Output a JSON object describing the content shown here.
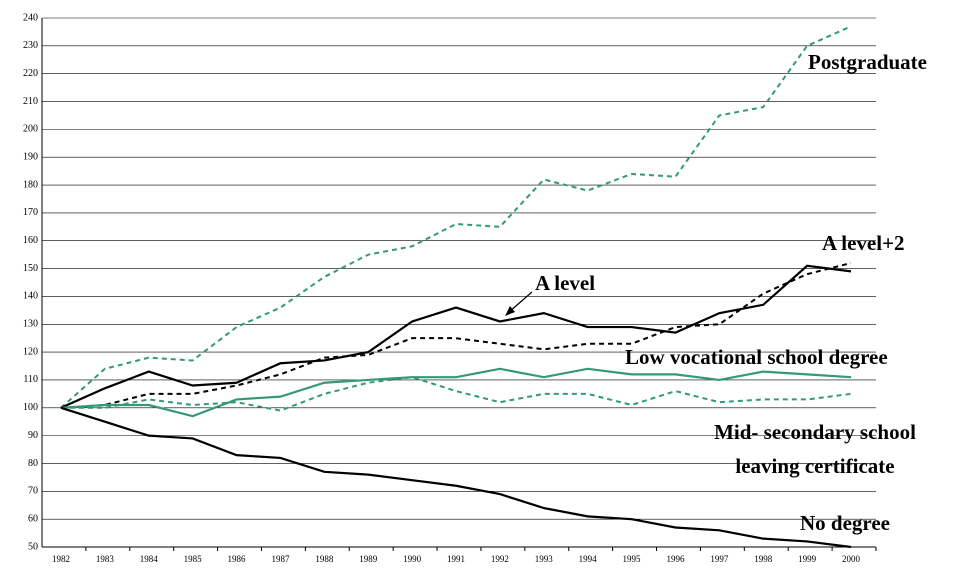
{
  "chart_data": {
    "type": "line",
    "x": [
      "1982",
      "1983",
      "1984",
      "1985",
      "1986",
      "1987",
      "1988",
      "1989",
      "1990",
      "1991",
      "1992",
      "1993",
      "1994",
      "1995",
      "1996",
      "1997",
      "1998",
      "1999",
      "2000"
    ],
    "ylim": [
      50,
      240
    ],
    "yticks": [
      50,
      60,
      70,
      80,
      90,
      100,
      110,
      120,
      130,
      140,
      150,
      160,
      170,
      180,
      190,
      200,
      210,
      220,
      230,
      240
    ],
    "grid": true,
    "series": [
      {
        "name": "Postgraduate",
        "color": "#339977",
        "dashed": true,
        "values": [
          100,
          114,
          118,
          117,
          129,
          136,
          147,
          155,
          158,
          166,
          165,
          182,
          178,
          184,
          183,
          205,
          208,
          230,
          237
        ]
      },
      {
        "name": "A level+2",
        "color": "#000000",
        "dashed": true,
        "values": [
          100,
          101,
          105,
          105,
          108,
          112,
          118,
          119,
          125,
          125,
          123,
          121,
          123,
          123,
          129,
          130,
          141,
          148,
          152
        ]
      },
      {
        "name": "A level",
        "color": "#000000",
        "dashed": false,
        "values": [
          100,
          107,
          113,
          108,
          109,
          116,
          117,
          120,
          131,
          136,
          131,
          134,
          129,
          129,
          127,
          134,
          137,
          151,
          149
        ]
      },
      {
        "name": "Low vocational school degree",
        "color": "#339977",
        "dashed": false,
        "values": [
          100,
          101,
          101,
          97,
          103,
          104,
          109,
          110,
          111,
          111,
          114,
          111,
          114,
          112,
          112,
          110,
          113,
          112,
          111
        ]
      },
      {
        "name": "Mid- secondary school leaving certificate",
        "color": "#339977",
        "dashed": true,
        "values": [
          100,
          100,
          103,
          101,
          102,
          99,
          105,
          109,
          111,
          106,
          102,
          105,
          105,
          101,
          106,
          102,
          103,
          103,
          105
        ]
      },
      {
        "name": "No degree",
        "color": "#000000",
        "dashed": false,
        "values": [
          100,
          95,
          90,
          89,
          83,
          82,
          77,
          76,
          74,
          72,
          69,
          64,
          61,
          60,
          57,
          56,
          53,
          52,
          50
        ]
      }
    ]
  }
}
